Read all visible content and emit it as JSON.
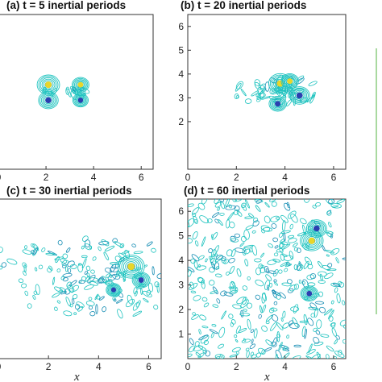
{
  "chart_data": [
    {
      "type": "contour",
      "title": "(a) t = 5 inertial periods",
      "xlim": [
        0,
        6.5
      ],
      "ylim": [
        0,
        6.5
      ],
      "xticks": [
        "0",
        "2",
        "4",
        "6"
      ],
      "yticks": [],
      "vortices": [
        {
          "x": 2.1,
          "y": 3.55,
          "sign": 1,
          "strength": 0.8
        },
        {
          "x": 2.1,
          "y": 2.9,
          "sign": -1,
          "strength": 0.7
        },
        {
          "x": 3.45,
          "y": 3.55,
          "sign": 1,
          "strength": 0.6
        },
        {
          "x": 3.45,
          "y": 2.9,
          "sign": -1,
          "strength": 0.55
        }
      ],
      "spread": 0.35
    },
    {
      "type": "contour",
      "title": "(b) t = 20 inertial periods",
      "xlim": [
        0,
        6.5
      ],
      "ylim": [
        0,
        6.5
      ],
      "xticks": [
        "0",
        "2",
        "4",
        "6"
      ],
      "yticks": [
        "2",
        "3",
        "4",
        "5",
        "6"
      ],
      "vortices": [
        {
          "x": 3.8,
          "y": 3.6,
          "sign": 1,
          "strength": 0.8
        },
        {
          "x": 4.2,
          "y": 3.7,
          "sign": 1,
          "strength": 0.6
        },
        {
          "x": 3.7,
          "y": 2.75,
          "sign": -1,
          "strength": 0.6
        },
        {
          "x": 4.6,
          "y": 3.1,
          "sign": -1,
          "strength": 0.7
        }
      ],
      "spread": 1.1
    },
    {
      "type": "contour",
      "title": "(c) t = 30 inertial periods",
      "xlim": [
        0,
        6.5
      ],
      "ylim": [
        0,
        6.5
      ],
      "xticks": [
        "0",
        "2",
        "4",
        "6"
      ],
      "yticks": [],
      "vortices": [
        {
          "x": 5.3,
          "y": 3.75,
          "sign": 1,
          "strength": 0.9
        },
        {
          "x": 5.7,
          "y": 3.2,
          "sign": -1,
          "strength": 0.6
        },
        {
          "x": 4.6,
          "y": 2.8,
          "sign": -1,
          "strength": 0.5
        }
      ],
      "spread": 3.0
    },
    {
      "type": "contour",
      "title": "(d) t = 60 inertial periods",
      "xlim": [
        0,
        6.5
      ],
      "ylim": [
        0,
        6.5
      ],
      "xticks": [
        "0",
        "2",
        "4",
        "6"
      ],
      "yticks": [
        "1",
        "2",
        "3",
        "4",
        "5",
        "6"
      ],
      "xlabel": "x",
      "vortices": [
        {
          "x": 5.3,
          "y": 5.3,
          "sign": -1,
          "strength": 0.7
        },
        {
          "x": 5.1,
          "y": 4.8,
          "sign": 1,
          "strength": 0.8
        },
        {
          "x": 5.0,
          "y": 2.65,
          "sign": -1,
          "strength": 0.6
        }
      ],
      "spread": 6.5
    }
  ],
  "colors": {
    "contour": "#22c4c0",
    "contour_dark": "#1a8fb5",
    "positive_core": "#e8d62a",
    "negative_core": "#2b3fb0",
    "colorbar_edge": "#a9d9a0"
  }
}
